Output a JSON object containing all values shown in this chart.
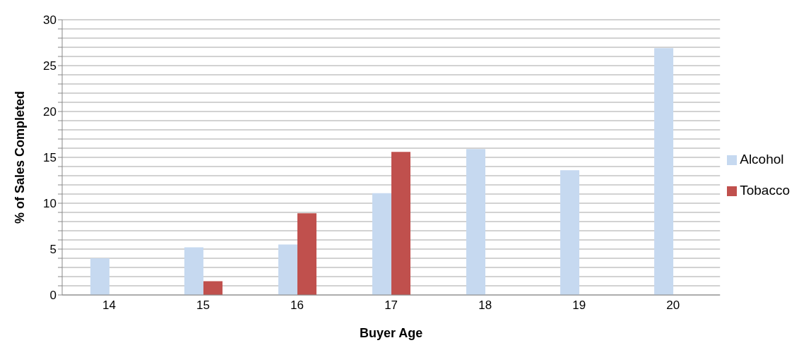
{
  "chart_data": {
    "type": "bar",
    "xlabel": "Buyer Age",
    "ylabel": "% of Sales Completed",
    "categories": [
      "14",
      "15",
      "16",
      "17",
      "18",
      "19",
      "20"
    ],
    "series": [
      {
        "name": "Alcohol",
        "color": "#c6d9f0",
        "values": [
          4,
          5.2,
          5.5,
          11.1,
          15.9,
          13.6,
          26.9
        ]
      },
      {
        "name": "Tobacco",
        "color": "#c0504d",
        "values": [
          null,
          1.5,
          8.9,
          15.6,
          null,
          null,
          null
        ]
      }
    ],
    "ylim": [
      0,
      30
    ],
    "yticks": [
      0,
      {
        "value": 1,
        "label": null
      },
      {
        "value": 2,
        "label": null
      },
      {
        "value": 3,
        "label": null
      },
      {
        "value": 4,
        "label": null
      },
      5,
      {
        "value": 6,
        "label": null
      },
      {
        "value": 7,
        "label": null
      },
      {
        "value": 8,
        "label": null
      },
      {
        "value": 9,
        "label": null
      },
      10,
      {
        "value": 11,
        "label": null
      },
      {
        "value": 12,
        "label": null
      },
      {
        "value": 13,
        "label": null
      },
      {
        "value": 14,
        "label": null
      },
      15,
      {
        "value": 16,
        "label": null
      },
      {
        "value": 17,
        "label": null
      },
      {
        "value": 18,
        "label": null
      },
      {
        "value": 19,
        "label": null
      },
      20,
      {
        "value": 21,
        "label": null
      },
      {
        "value": 22,
        "label": null
      },
      {
        "value": 23,
        "label": null
      },
      {
        "value": 24,
        "label": null
      },
      25,
      {
        "value": 26,
        "label": null
      },
      {
        "value": 27,
        "label": null
      },
      {
        "value": 28,
        "label": null
      },
      {
        "value": 29,
        "label": null
      },
      30
    ],
    "grid": "y",
    "legend": "right"
  }
}
